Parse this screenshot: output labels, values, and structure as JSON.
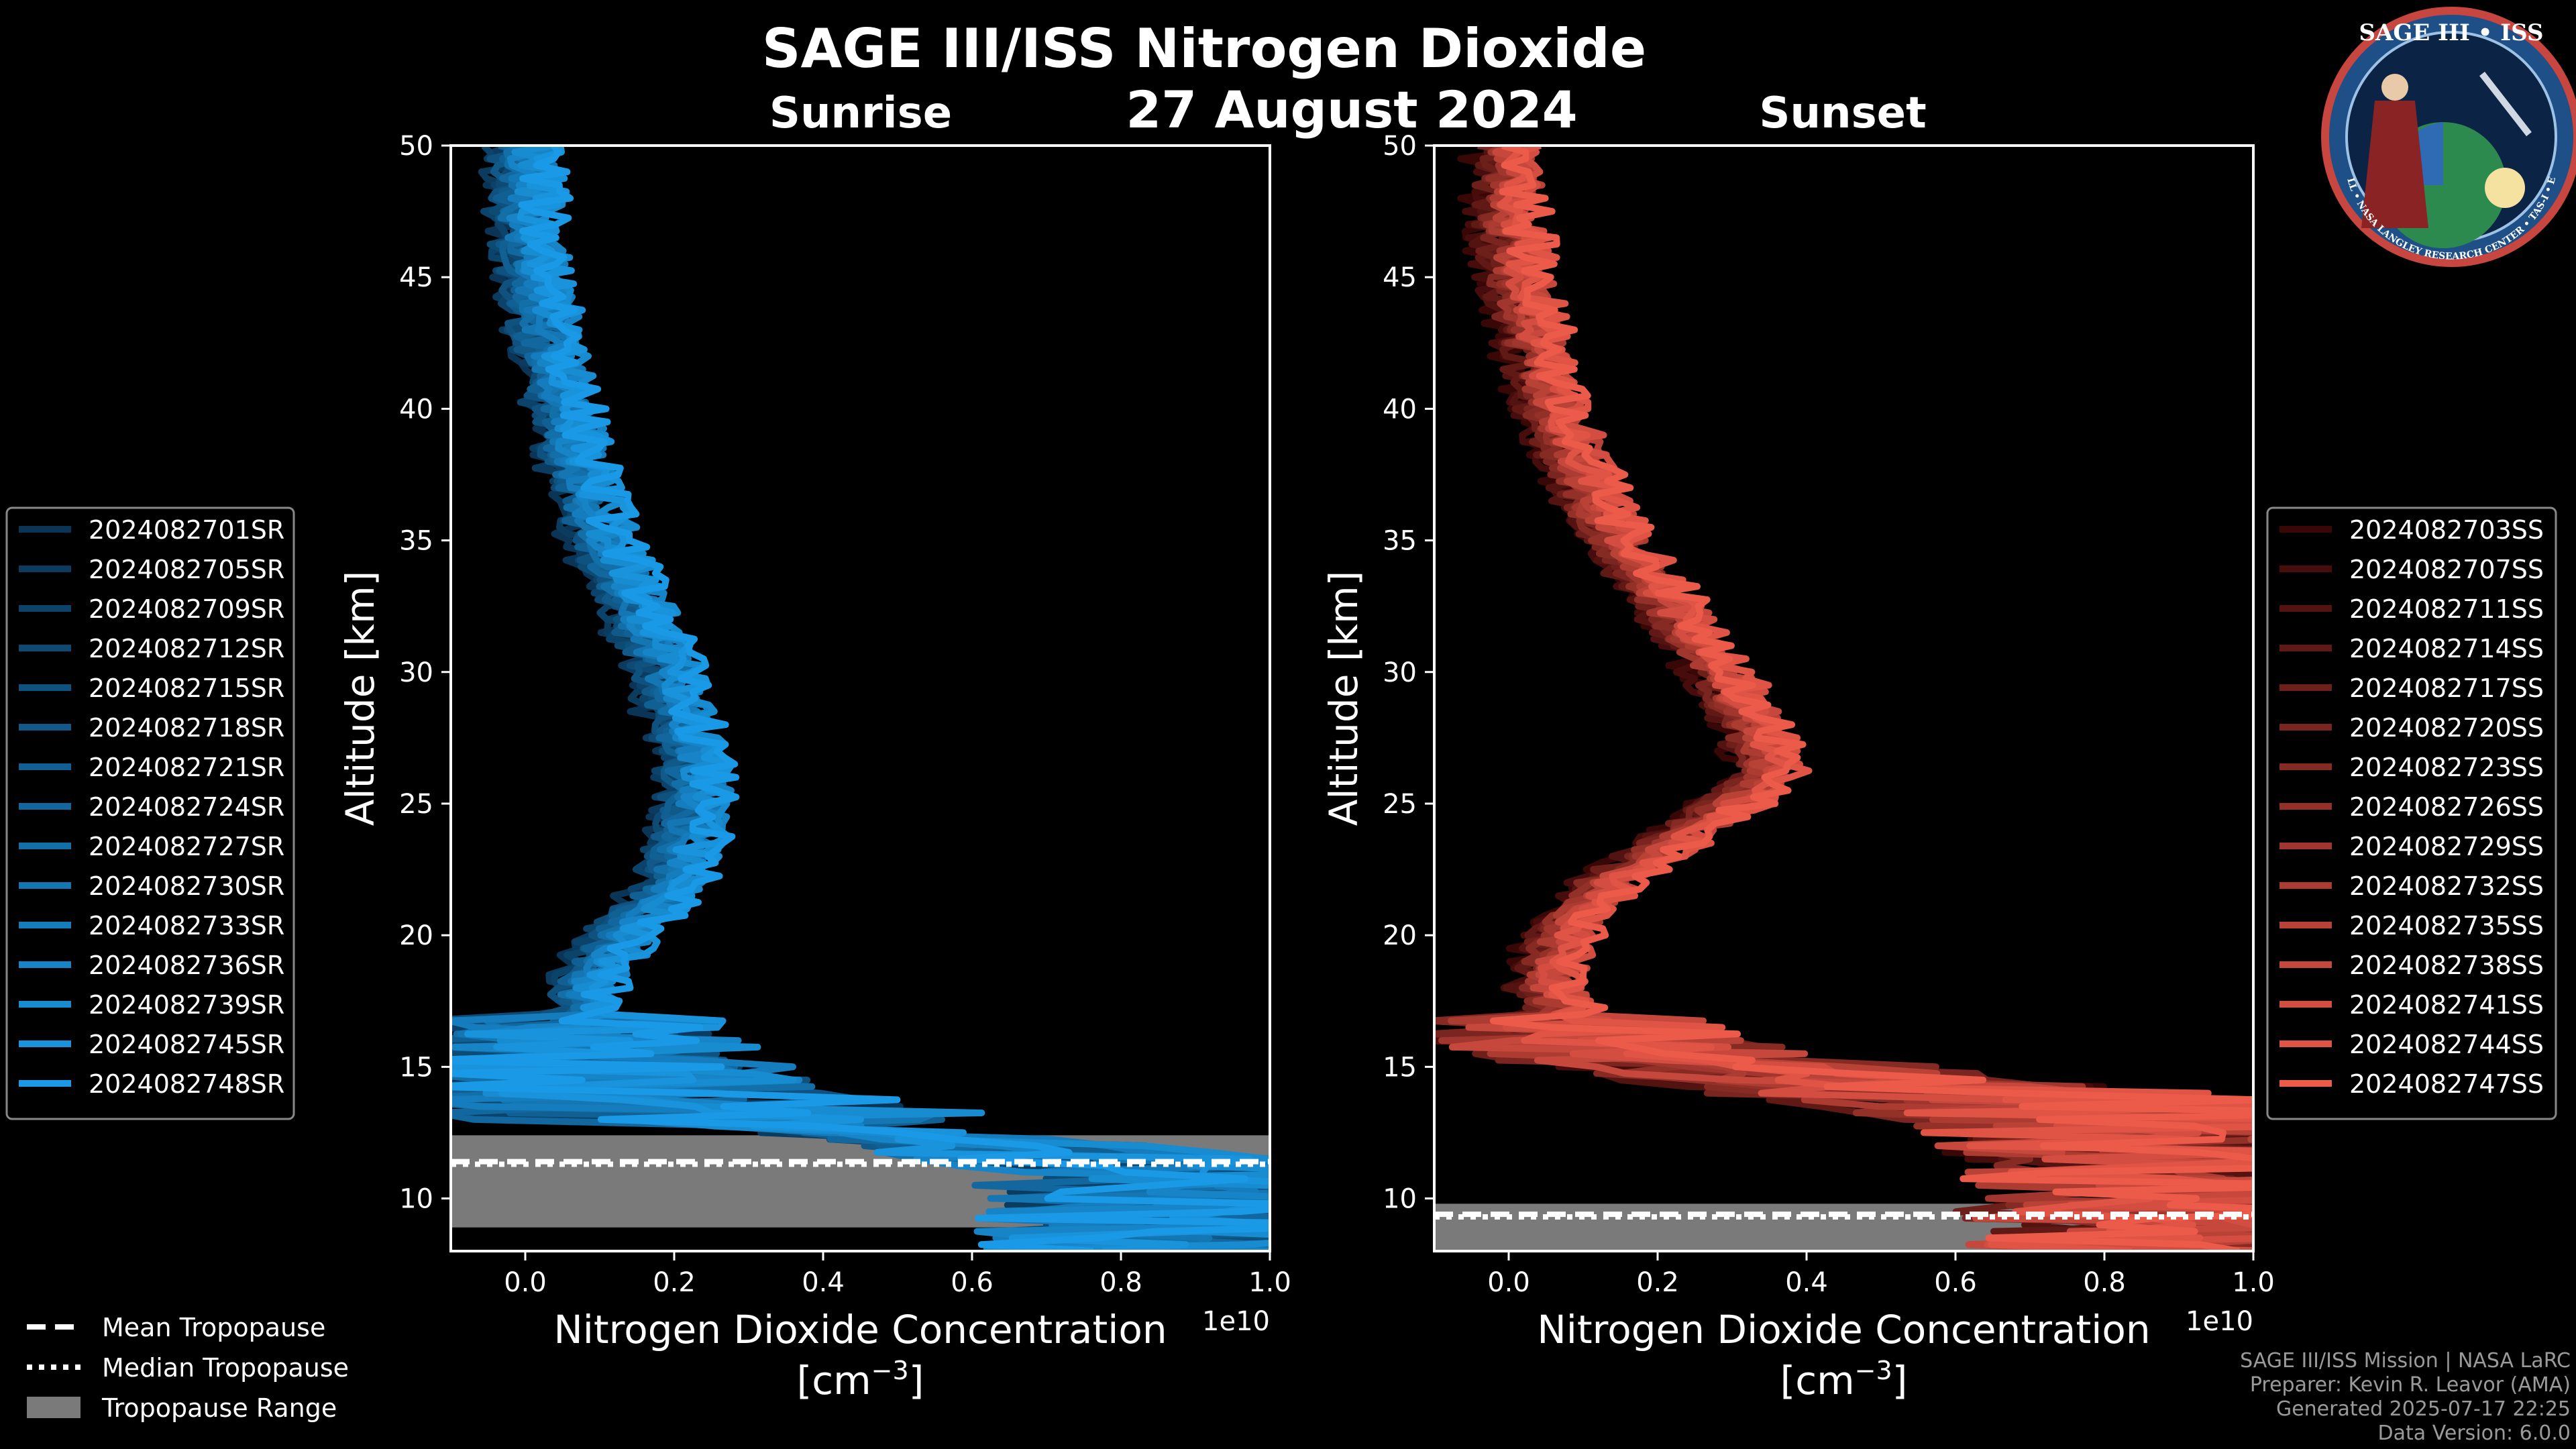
{
  "chart_data": {
    "type": "line",
    "title": "SAGE III/ISS Nitrogen Dioxide",
    "date": "27 August 2024",
    "exponent_label": "1e10",
    "panels": [
      {
        "id": "sunrise",
        "subtitle": "Sunrise",
        "xlabel": "Nitrogen Dioxide Concentration",
        "xunit": "[cm",
        "xunit_sup": "−3",
        "xunit_close": "]",
        "ylabel": "Altitude [km]",
        "xlim": [
          -0.1,
          1.0
        ],
        "ylim": [
          8,
          50
        ],
        "x_ticks": [
          "0.0",
          "0.2",
          "0.4",
          "0.6",
          "0.8",
          "1.0"
        ],
        "y_ticks": [
          "10",
          "15",
          "20",
          "25",
          "30",
          "35",
          "40",
          "45",
          "50"
        ],
        "color_dark": "#0a3556",
        "color_light": "#1a9ae6",
        "series": [
          "2024082701SR",
          "2024082705SR",
          "2024082709SR",
          "2024082712SR",
          "2024082715SR",
          "2024082718SR",
          "2024082721SR",
          "2024082724SR",
          "2024082727SR",
          "2024082730SR",
          "2024082733SR",
          "2024082736SR",
          "2024082739SR",
          "2024082745SR",
          "2024082748SR"
        ],
        "mean_profile": [
          [
            0.0,
            50
          ],
          [
            0.0,
            47
          ],
          [
            0.02,
            44
          ],
          [
            0.05,
            40
          ],
          [
            0.09,
            36
          ],
          [
            0.14,
            33
          ],
          [
            0.19,
            30
          ],
          [
            0.22,
            27
          ],
          [
            0.23,
            25
          ],
          [
            0.2,
            22
          ],
          [
            0.13,
            20
          ],
          [
            0.08,
            18
          ],
          [
            0.06,
            16
          ],
          [
            0.1,
            14
          ],
          [
            0.3,
            13
          ],
          [
            0.7,
            12
          ],
          [
            1.0,
            11
          ],
          [
            1.0,
            9
          ]
        ],
        "tropopause": {
          "mean": 11.4,
          "median": 11.3,
          "range": [
            8.9,
            12.4
          ]
        }
      },
      {
        "id": "sunset",
        "subtitle": "Sunset",
        "xlabel": "Nitrogen Dioxide Concentration",
        "xunit": "[cm",
        "xunit_sup": "−3",
        "xunit_close": "]",
        "ylabel": "Altitude [km]",
        "xlim": [
          -0.1,
          1.0
        ],
        "ylim": [
          8,
          50
        ],
        "x_ticks": [
          "0.0",
          "0.2",
          "0.4",
          "0.6",
          "0.8",
          "1.0"
        ],
        "y_ticks": [
          "10",
          "15",
          "20",
          "25",
          "30",
          "35",
          "40",
          "45",
          "50"
        ],
        "color_dark": "#3a0707",
        "color_light": "#ec5a4a",
        "series": [
          "2024082703SS",
          "2024082707SS",
          "2024082711SS",
          "2024082714SS",
          "2024082717SS",
          "2024082720SS",
          "2024082723SS",
          "2024082726SS",
          "2024082729SS",
          "2024082732SS",
          "2024082735SS",
          "2024082738SS",
          "2024082741SS",
          "2024082744SS",
          "2024082747SS"
        ],
        "mean_profile": [
          [
            0.0,
            50
          ],
          [
            0.0,
            47
          ],
          [
            0.02,
            44
          ],
          [
            0.06,
            40
          ],
          [
            0.12,
            36
          ],
          [
            0.2,
            33
          ],
          [
            0.28,
            30
          ],
          [
            0.33,
            28
          ],
          [
            0.35,
            26
          ],
          [
            0.25,
            24
          ],
          [
            0.13,
            22
          ],
          [
            0.07,
            20
          ],
          [
            0.05,
            18
          ],
          [
            0.1,
            16
          ],
          [
            0.3,
            15
          ],
          [
            0.6,
            14
          ],
          [
            0.9,
            13
          ],
          [
            1.0,
            11
          ],
          [
            1.0,
            10
          ]
        ],
        "tropopause": {
          "mean": 9.4,
          "median": 9.3,
          "range": [
            8.0,
            9.8
          ]
        }
      }
    ],
    "tropopause_legend": [
      "Mean Tropopause",
      "Median Tropopause",
      "Tropopause Range"
    ]
  },
  "badge": {
    "title": "SAGE III • ISS",
    "ring_text": "BALL • NASA LANGLEY RESEARCH CENTER • TAS-I • ESA"
  },
  "credits": [
    "SAGE III/ISS Mission | NASA LaRC",
    "Preparer: Kevin R. Leavor (AMA)",
    "Generated 2025-07-17 22:25",
    "Data Version: 6.0.0"
  ]
}
